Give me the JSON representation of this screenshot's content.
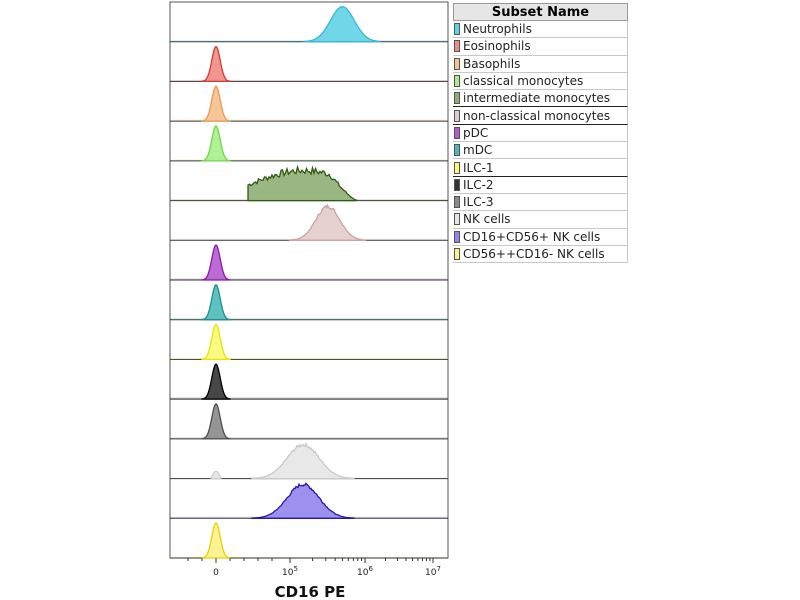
{
  "chart_data": {
    "type": "histogram-overlay",
    "xlabel": "CD16 PE",
    "x_ticks": [
      {
        "base": "0",
        "exp": ""
      },
      {
        "base": "10",
        "exp": "5"
      },
      {
        "base": "10",
        "exp": "6"
      },
      {
        "base": "10",
        "exp": "7"
      }
    ],
    "legend_title": "Subset Name",
    "series": [
      {
        "name": "Neutrophils",
        "color": "#5fd3e6",
        "line": "#37b8cf",
        "peak": 500000,
        "shape": "wide"
      },
      {
        "name": "Eosinophils",
        "color": "#f08a84",
        "line": "#d63b32",
        "peak": 0,
        "shape": "narrow"
      },
      {
        "name": "Basophils",
        "color": "#f5c08d",
        "line": "#ea9a4f",
        "peak": 0,
        "shape": "narrow"
      },
      {
        "name": "classical monocytes",
        "color": "#a8ef8a",
        "line": "#6fd64a",
        "peak": 0,
        "shape": "narrow"
      },
      {
        "name": "intermediate monocytes",
        "color": "#8fae74",
        "line": "#2e5a13",
        "peak": 100000,
        "shape": "plateau"
      },
      {
        "name": "non-classical monocytes",
        "color": "#e3cbcb",
        "line": "#c9a4a4",
        "peak": 320000,
        "shape": "wide"
      },
      {
        "name": "pDC",
        "color": "#b65bcf",
        "line": "#8a1aa8",
        "peak": 0,
        "shape": "narrow"
      },
      {
        "name": "mDC",
        "color": "#4cb9b9",
        "line": "#1f8e8e",
        "peak": 0,
        "shape": "narrow"
      },
      {
        "name": "ILC-1",
        "color": "#fbfb73",
        "line": "#e6e600",
        "peak": 0,
        "shape": "narrow"
      },
      {
        "name": "ILC-2",
        "color": "#333333",
        "line": "#000000",
        "peak": 0,
        "shape": "narrow"
      },
      {
        "name": "ILC-3",
        "color": "#8a8a8a",
        "line": "#4d4d4d",
        "peak": 0,
        "shape": "narrow"
      },
      {
        "name": "NK cells",
        "color": "#e6e6e6",
        "line": "#c9c9c9",
        "peak": 150000,
        "shape": "wide"
      },
      {
        "name": "CD16+CD56+ NK cells",
        "color": "#9284ee",
        "line": "#2a1b9e",
        "peak": 150000,
        "shape": "wide"
      },
      {
        "name": "CD56++CD16- NK cells",
        "color": "#fbf08a",
        "line": "#e6d200",
        "peak": 0,
        "shape": "narrow"
      }
    ]
  }
}
